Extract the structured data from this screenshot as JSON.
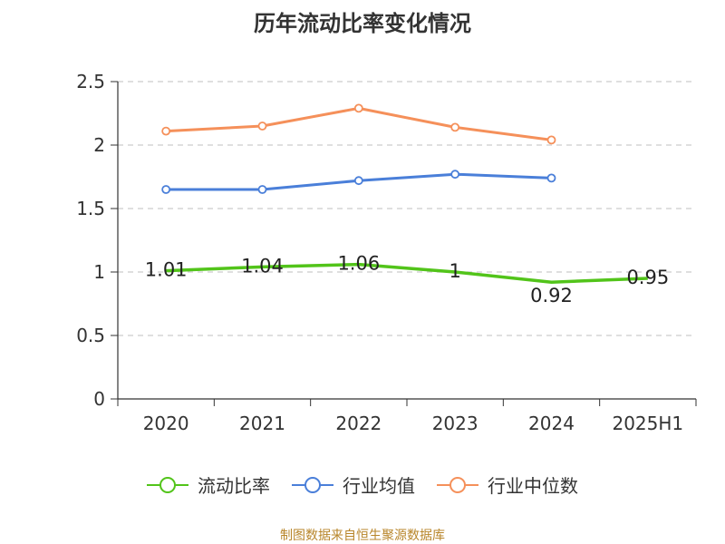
{
  "title": "历年流动比率变化情况",
  "source_note": "制图数据来自恒生聚源数据库",
  "chart_data": {
    "type": "line",
    "categories": [
      "2020",
      "2021",
      "2022",
      "2023",
      "2024",
      "2025H1"
    ],
    "ylim": [
      0,
      2.5
    ],
    "yticks": [
      "0",
      "0.5",
      "1",
      "1.5",
      "2",
      "2.5"
    ],
    "grid": true,
    "legend_position": "bottom",
    "series": [
      {
        "name": "流动比率",
        "color": "#52c41a",
        "values": [
          1.01,
          1.04,
          1.06,
          1.0,
          0.92,
          0.95
        ],
        "labels": [
          "1.01",
          "1.04",
          "1.06",
          "1",
          "0.92",
          "0.95"
        ],
        "markers": false
      },
      {
        "name": "行业均值",
        "color": "#4a7fd9",
        "values": [
          1.65,
          1.65,
          1.72,
          1.77,
          1.74,
          null
        ],
        "markers": true
      },
      {
        "name": "行业中位数",
        "color": "#f5905a",
        "values": [
          2.11,
          2.15,
          2.29,
          2.14,
          2.04,
          null
        ],
        "markers": true
      }
    ]
  }
}
